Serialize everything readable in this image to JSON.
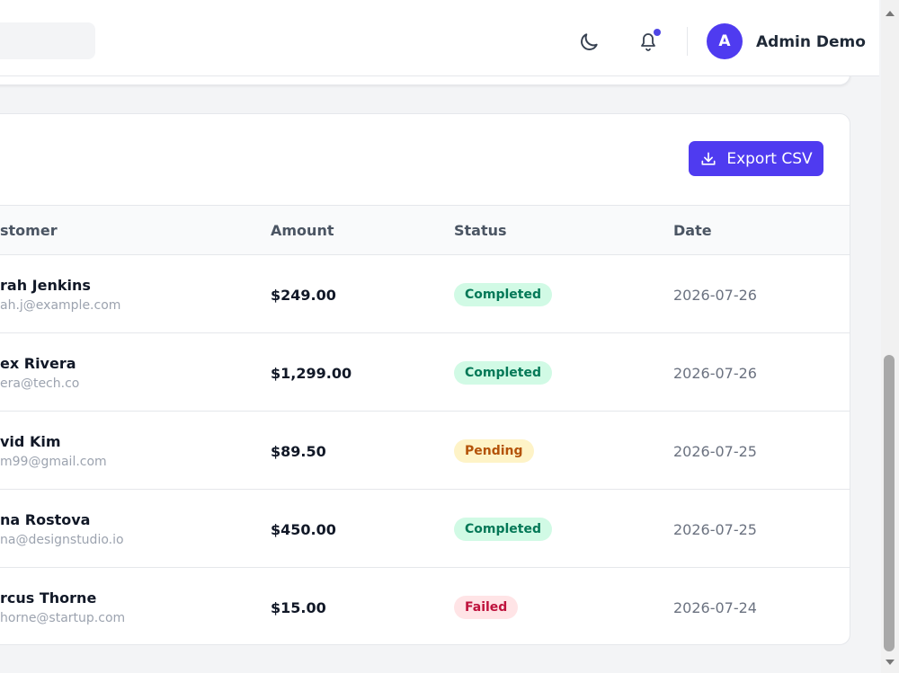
{
  "header": {
    "user_initial": "A",
    "user_name": "Admin Demo"
  },
  "export_button": "Export CSV",
  "table": {
    "columns": [
      "stomer",
      "Amount",
      "Status",
      "Date"
    ],
    "rows": [
      {
        "name": "rah Jenkins",
        "email": "ah.j@example.com",
        "amount": "$249.00",
        "status": "Completed",
        "status_bg": "#d1fae5",
        "status_fg": "#047857",
        "date": "2026-07-26"
      },
      {
        "name": "ex Rivera",
        "email": "era@tech.co",
        "amount": "$1,299.00",
        "status": "Completed",
        "status_bg": "#d1fae5",
        "status_fg": "#047857",
        "date": "2026-07-26"
      },
      {
        "name": "vid Kim",
        "email": "m99@gmail.com",
        "amount": "$89.50",
        "status": "Pending",
        "status_bg": "#fef3c7",
        "status_fg": "#b45309",
        "date": "2026-07-25"
      },
      {
        "name": "na Rostova",
        "email": "na@designstudio.io",
        "amount": "$450.00",
        "status": "Completed",
        "status_bg": "#d1fae5",
        "status_fg": "#047857",
        "date": "2026-07-25"
      },
      {
        "name": "rcus Thorne",
        "email": "horne@startup.com",
        "amount": "$15.00",
        "status": "Failed",
        "status_bg": "#ffe4e6",
        "status_fg": "#be123c",
        "date": "2026-07-24"
      }
    ]
  }
}
